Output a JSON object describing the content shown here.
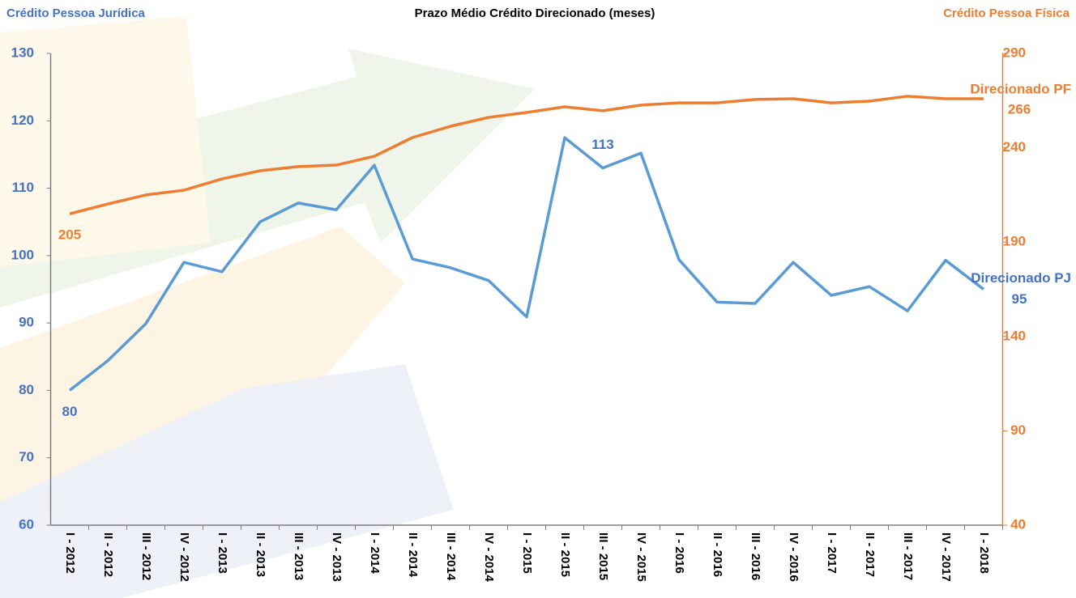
{
  "chart_data": {
    "type": "line",
    "title": "Prazo Médio Crédito Direcionado (meses)",
    "y_axis_label": "Crédito Pessoa Jurídica",
    "y2_axis_label": "Crédito Pessoa Física",
    "categories": [
      "I - 2012",
      "II - 2012",
      "III - 2012",
      "IV - 2012",
      "I - 2013",
      "II - 2013",
      "III - 2013",
      "IV - 2013",
      "I - 2014",
      "II - 2014",
      "III - 2014",
      "IV - 2014",
      "I - 2015",
      "II - 2015",
      "III - 2015",
      "IV - 2015",
      "I - 2016",
      "II - 2016",
      "III - 2016",
      "IV - 2016",
      "I - 2017",
      "II - 2017",
      "III - 2017",
      "IV - 2017",
      "I - 2018"
    ],
    "series": [
      {
        "name": "Direcionado PJ",
        "color": "#5b9bd5",
        "label_color": "#4472c4",
        "axis": "y",
        "values": [
          80,
          84.4,
          89.9,
          99.0,
          97.6,
          105.0,
          107.8,
          106.8,
          113.4,
          99.5,
          98.2,
          96.3,
          90.9,
          117.5,
          113,
          115.2,
          99.4,
          93.1,
          92.9,
          99.0,
          94.1,
          95.4,
          91.8,
          99.3,
          95
        ],
        "labeled_points": [
          0,
          14,
          24
        ]
      },
      {
        "name": "Direcionado PF",
        "color": "#ed7d31",
        "label_color": "#ed7d31",
        "axis": "y2",
        "values": [
          205,
          210.2,
          215,
          217.5,
          223.5,
          227.8,
          230,
          230.8,
          235.5,
          245.4,
          251.4,
          256.1,
          258.7,
          261.7,
          259.6,
          262.6,
          263.8,
          263.8,
          265.6,
          266,
          263.8,
          264.7,
          267.3,
          266,
          266
        ],
        "labeled_points": [
          0,
          24
        ]
      }
    ],
    "ylim": [
      60,
      130
    ],
    "yticks": [
      60,
      70,
      80,
      90,
      100,
      110,
      120,
      130
    ],
    "y2lim": [
      40,
      290
    ],
    "y2ticks": [
      40,
      90,
      140,
      190,
      240,
      290
    ]
  }
}
